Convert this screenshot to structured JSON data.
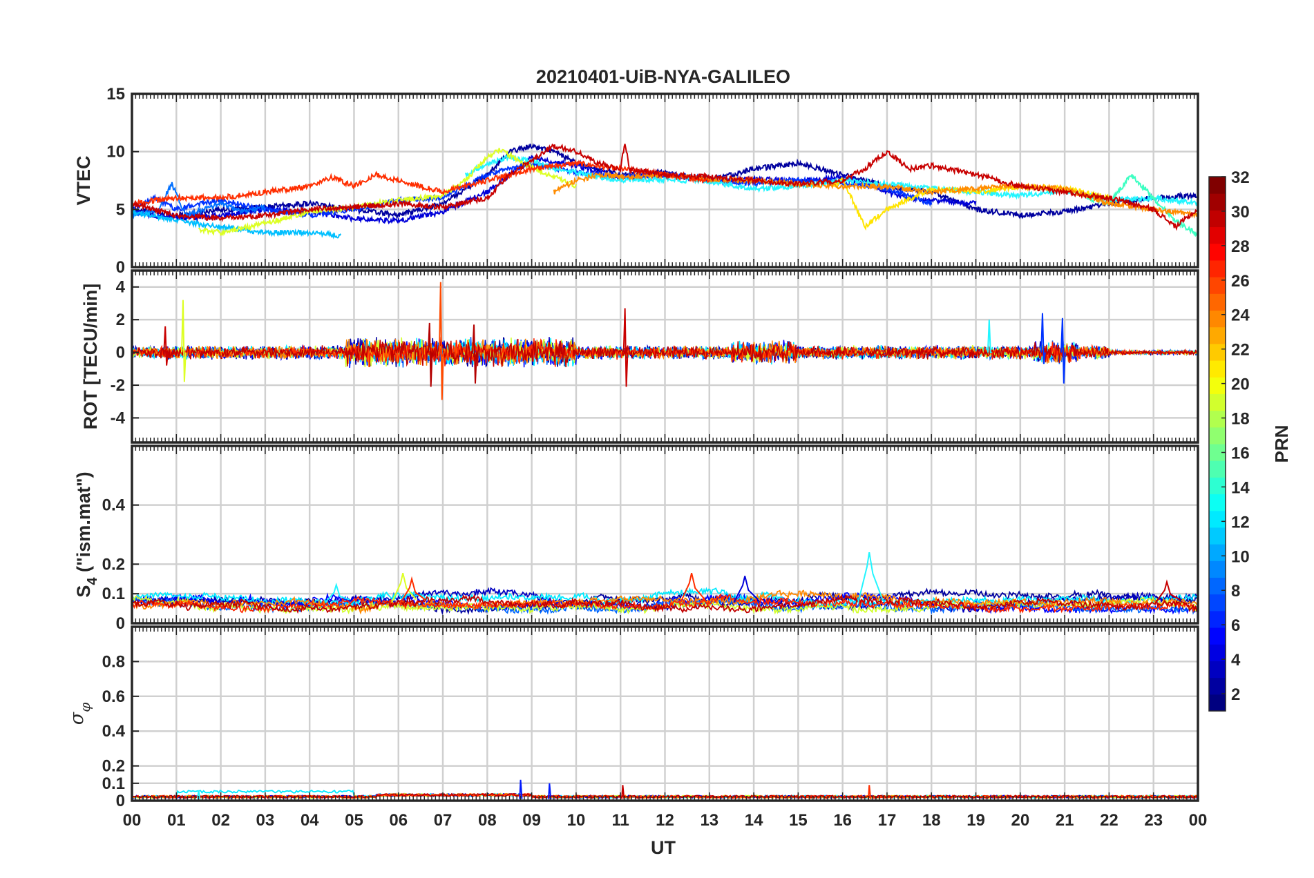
{
  "chart_data": {
    "type": "line",
    "title": "20210401-UiB-NYA-GALILEO",
    "xlabel": "UT",
    "x_tick_labels": [
      "00",
      "01",
      "02",
      "03",
      "04",
      "05",
      "06",
      "07",
      "08",
      "09",
      "10",
      "11",
      "12",
      "13",
      "14",
      "15",
      "16",
      "17",
      "18",
      "19",
      "20",
      "21",
      "22",
      "23",
      "00"
    ],
    "xlim": [
      0,
      24
    ],
    "grid": true,
    "colormap": "jet",
    "colorbar": {
      "label": "PRN",
      "range": [
        1,
        32
      ],
      "ticks": [
        2,
        4,
        6,
        8,
        10,
        12,
        14,
        16,
        18,
        20,
        22,
        24,
        26,
        28,
        30,
        32
      ],
      "tick_labels": [
        "2",
        "4",
        "6",
        "8",
        "10",
        "12",
        "14",
        "16",
        "18",
        "20",
        "22",
        "24",
        "26",
        "28",
        "30",
        "32"
      ],
      "placement": "right"
    },
    "panels": [
      {
        "id": "vtec",
        "ylabel": "VTEC",
        "ylim": [
          0,
          15
        ],
        "yticks": [
          0,
          5,
          10,
          15
        ],
        "ytick_labels": [
          "0",
          "5",
          "10",
          "15"
        ],
        "series": [
          {
            "prn": 2,
            "color": "#00009f",
            "x": [
              0,
              1,
              2,
              3,
              4,
              5,
              6,
              7,
              8,
              8.5,
              9,
              9.5,
              10,
              11,
              12,
              13,
              14,
              15,
              16,
              17,
              18,
              19,
              20,
              21,
              22,
              23,
              24
            ],
            "y": [
              5,
              4.5,
              5,
              5.2,
              5.5,
              5,
              4.5,
              5.5,
              8,
              10,
              10.5,
              10,
              9,
              8,
              8.2,
              7.5,
              8.5,
              9,
              8,
              7,
              6.5,
              5,
              4.5,
              4.8,
              5.5,
              6,
              6.2
            ]
          },
          {
            "prn": 3,
            "color": "#0000d9",
            "x": [
              0,
              1,
              2,
              3,
              4,
              5,
              6,
              7,
              8,
              9,
              10,
              11,
              12,
              13,
              14,
              15,
              16,
              17,
              17.5,
              18,
              19
            ],
            "y": [
              4.8,
              4.2,
              4.5,
              5,
              4.8,
              4.2,
              4,
              4.8,
              6.5,
              9.5,
              8.8,
              7.8,
              8,
              7.5,
              7.6,
              7.5,
              7.8,
              6.5,
              6,
              5.8,
              5.5
            ]
          },
          {
            "prn": 5,
            "color": "#0033ff",
            "x": [
              0,
              0.5,
              1,
              1.5,
              2,
              3,
              4,
              5,
              6,
              7,
              8,
              9,
              10,
              11,
              12,
              13,
              14,
              15,
              16,
              17,
              18
            ],
            "y": [
              5,
              6,
              5,
              5.5,
              5.8,
              5,
              4.5,
              5,
              5.8,
              6,
              8,
              9,
              8.2,
              7.8,
              8,
              7.6,
              7.2,
              7.5,
              7.3,
              6.8,
              5.5
            ]
          },
          {
            "prn": 8,
            "color": "#006fff",
            "x": [
              0,
              0.6,
              0.9,
              1.2,
              2,
              2.5,
              3
            ],
            "y": [
              4.5,
              5,
              7.2,
              4.5,
              5.5,
              4.8,
              5.2
            ]
          },
          {
            "prn": 11,
            "color": "#00bfff",
            "x": [
              0,
              1,
              2,
              3,
              4,
              4.7
            ],
            "y": [
              4.8,
              4,
              3.5,
              3,
              3,
              2.7
            ]
          },
          {
            "prn": 12,
            "color": "#22f5ff",
            "x": [
              7.5,
              8,
              8.5,
              9,
              9.5,
              10,
              10.5,
              11,
              12,
              13,
              14,
              15,
              16,
              17,
              18,
              19,
              20,
              21,
              22,
              23,
              24
            ],
            "y": [
              8,
              9,
              9.5,
              9.2,
              8.5,
              8.2,
              7.8,
              7.5,
              7.6,
              7.4,
              6.8,
              7,
              7.5,
              7.2,
              6.8,
              6.5,
              6.2,
              6.6,
              5.8,
              6,
              5.5
            ]
          },
          {
            "prn": 14,
            "color": "#3cffc2",
            "x": [
              21.5,
              22,
              22.5,
              23,
              23.5,
              24
            ],
            "y": [
              6,
              5.5,
              8,
              6,
              4,
              2.8
            ]
          },
          {
            "prn": 19,
            "color": "#ddff24",
            "x": [
              1.5,
              2,
              3,
              4,
              5,
              6,
              7,
              7.5,
              8,
              8.3,
              8.8,
              9.5,
              10
            ],
            "y": [
              3.2,
              3,
              3.8,
              4.8,
              5.2,
              5.8,
              6.2,
              7.5,
              9.5,
              10.2,
              9,
              7.8,
              7
            ]
          },
          {
            "prn": 21,
            "color": "#ffe400",
            "x": [
              15.8,
              16,
              16.5,
              17,
              18,
              19,
              20,
              21,
              22
            ],
            "y": [
              7,
              7.6,
              3.5,
              5,
              6.8,
              6.5,
              7,
              6.8,
              6
            ]
          },
          {
            "prn": 24,
            "color": "#ff8c00",
            "x": [
              9.5,
              10,
              10.5,
              11,
              12,
              13,
              14,
              15,
              16,
              17,
              18,
              19,
              20,
              21,
              22,
              23,
              24
            ],
            "y": [
              6.5,
              7.5,
              8,
              7.8,
              8,
              7.6,
              7.5,
              7.2,
              7,
              7,
              6.5,
              6.8,
              7,
              6.8,
              5.5,
              5,
              4.5
            ]
          },
          {
            "prn": 27,
            "color": "#ff2e00",
            "x": [
              0,
              1,
              2,
              3,
              4,
              4.5,
              5,
              5.5,
              6,
              6.5,
              7,
              8,
              9,
              10,
              11,
              12,
              13
            ],
            "y": [
              5.5,
              6,
              6,
              6.5,
              7,
              7.8,
              7,
              8,
              7.5,
              7,
              6.5,
              7.5,
              8.5,
              9,
              8.5,
              8,
              7.5
            ]
          },
          {
            "prn": 30,
            "color": "#c80000",
            "x": [
              0,
              1,
              2,
              3,
              4,
              5,
              6,
              7,
              8,
              8.5,
              9,
              9.5,
              10,
              10.5,
              11,
              11.1,
              11.2,
              12,
              13,
              14,
              15,
              16,
              16.5,
              17,
              17.5,
              18,
              19,
              20,
              21,
              22,
              23,
              23.5,
              24
            ],
            "y": [
              5.5,
              4.5,
              4.2,
              4.5,
              5,
              5.2,
              5.5,
              5.2,
              6,
              8,
              9.2,
              10.5,
              10,
              9,
              8.5,
              10.8,
              8.5,
              8,
              7.8,
              7.5,
              7.2,
              7.5,
              8.5,
              10,
              8.5,
              8.8,
              8,
              7,
              6.5,
              6,
              5,
              3.5,
              5
            ]
          }
        ]
      },
      {
        "id": "rot",
        "ylabel": "ROT [TECU/min]",
        "ylim": [
          -5.5,
          5
        ],
        "yticks": [
          -4,
          -2,
          0,
          2,
          4
        ],
        "ytick_labels": [
          "-4",
          "-2",
          "0",
          "2",
          "4"
        ],
        "spikes": [
          {
            "prn": 19,
            "color": "#ddff24",
            "x": 1.15,
            "ymin": -1.8,
            "ymax": 3.2
          },
          {
            "prn": 28,
            "color": "#ff4a00",
            "x": 6.95,
            "ymin": -2.9,
            "ymax": 4.3
          },
          {
            "prn": 31,
            "color": "#b40000",
            "x": 6.7,
            "ymin": -2.1,
            "ymax": 1.8
          },
          {
            "prn": 31,
            "color": "#b40000",
            "x": 7.7,
            "ymin": -1.9,
            "ymax": 1.7
          },
          {
            "prn": 30,
            "color": "#c80000",
            "x": 11.1,
            "ymin": -2.1,
            "ymax": 2.7
          },
          {
            "prn": 12,
            "color": "#22f5ff",
            "x": 19.3,
            "ymin": 0,
            "ymax": 2.0
          },
          {
            "prn": 5,
            "color": "#0033ff",
            "x": 20.5,
            "ymin": -0.7,
            "ymax": 2.4
          },
          {
            "prn": 5,
            "color": "#0033ff",
            "x": 20.95,
            "ymin": -1.9,
            "ymax": 2.1
          },
          {
            "prn": 30,
            "color": "#c80000",
            "x": 0.75,
            "ymin": -0.8,
            "ymax": 1.6
          }
        ]
      },
      {
        "id": "s4",
        "ylabel": "S4 (\"ism.mat\")",
        "ylabel_main": "S",
        "ylabel_sub": "4",
        "ylabel_rest": " (\"ism.mat\")",
        "ylim": [
          0,
          0.6
        ],
        "yticks": [
          0,
          0.1,
          0.2,
          0.4
        ],
        "ytick_labels": [
          "0",
          "0.1",
          "0.2",
          "0.4"
        ],
        "peaks": [
          {
            "prn": 12,
            "color": "#22f5ff",
            "x": 16.6,
            "y": 0.24
          },
          {
            "prn": 19,
            "color": "#ddff24",
            "x": 6.1,
            "y": 0.17
          },
          {
            "prn": 27,
            "color": "#ff2e00",
            "x": 12.6,
            "y": 0.17
          },
          {
            "prn": 27,
            "color": "#ff2e00",
            "x": 6.3,
            "y": 0.15
          },
          {
            "prn": 3,
            "color": "#0000d9",
            "x": 13.8,
            "y": 0.16
          },
          {
            "prn": 30,
            "color": "#c80000",
            "x": 23.3,
            "y": 0.14
          },
          {
            "prn": 12,
            "color": "#22f5ff",
            "x": 4.6,
            "y": 0.13
          }
        ]
      },
      {
        "id": "sigma_phi",
        "ylabel": "σφ",
        "ylabel_main": "σ",
        "ylabel_sub": "φ",
        "ylim": [
          0,
          1
        ],
        "yticks": [
          0,
          0.1,
          0.2,
          0.4,
          0.6,
          0.8
        ],
        "ytick_labels": [
          "0",
          "0.1",
          "0.2",
          "0.4",
          "0.6",
          "0.8"
        ],
        "peaks": [
          {
            "prn": 4,
            "color": "#0019ff",
            "x": 8.75,
            "y": 0.12
          },
          {
            "prn": 4,
            "color": "#0019ff",
            "x": 9.4,
            "y": 0.1
          },
          {
            "prn": 30,
            "color": "#c80000",
            "x": 11.05,
            "y": 0.09
          },
          {
            "prn": 27,
            "color": "#ff2e00",
            "x": 16.6,
            "y": 0.09
          },
          {
            "prn": 12,
            "color": "#22f5ff",
            "x": 1.5,
            "y": 0.06
          }
        ]
      }
    ]
  }
}
